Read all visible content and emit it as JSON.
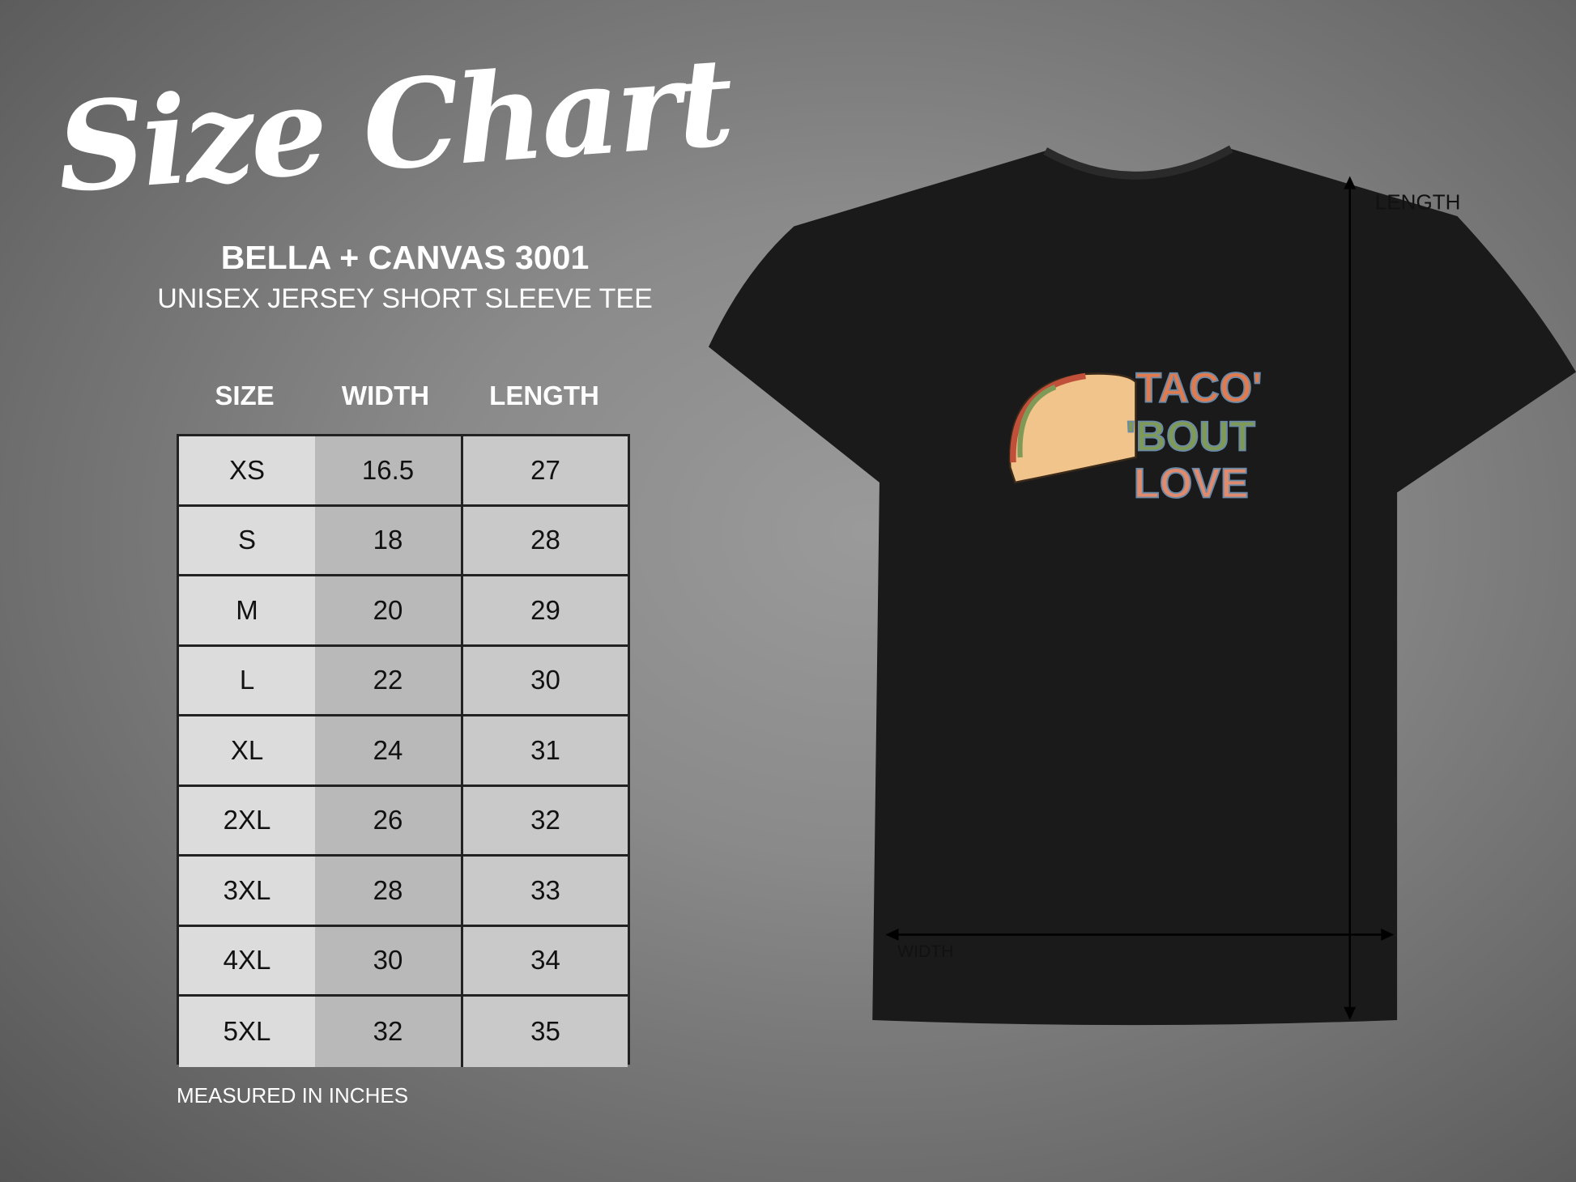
{
  "title": "Size Chart",
  "brand": "BELLA + CANVAS 3001",
  "subtitle": "UNISEX JERSEY SHORT SLEEVE TEE",
  "table": {
    "headers": [
      "SIZE",
      "WIDTH",
      "LENGTH"
    ],
    "rows": [
      [
        "XS",
        "16.5",
        "27"
      ],
      [
        "S",
        "18",
        "28"
      ],
      [
        "M",
        "20",
        "29"
      ],
      [
        "L",
        "22",
        "30"
      ],
      [
        "XL",
        "24",
        "31"
      ],
      [
        "2XL",
        "26",
        "32"
      ],
      [
        "3XL",
        "28",
        "33"
      ],
      [
        "4XL",
        "30",
        "34"
      ],
      [
        "5XL",
        "32",
        "35"
      ]
    ]
  },
  "note": "MEASURED IN INCHES",
  "shirt": {
    "color": "#1a1a1a",
    "design_lines": [
      "TACO'",
      "'BOUT",
      "LOVE"
    ],
    "design_colors": [
      "#e07a4f",
      "#7f9a57",
      "#e08a6e"
    ],
    "length_label": "LENGTH",
    "width_label": "WIDTH"
  }
}
